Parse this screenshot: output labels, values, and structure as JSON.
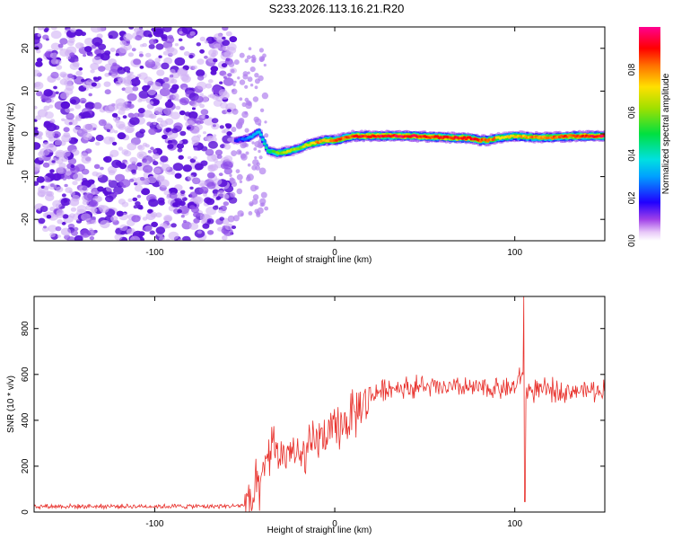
{
  "page": {
    "title": "S233.2026.113.16.21.R20"
  },
  "chart_data": [
    {
      "type": "heatmap",
      "title": "S233.2026.113.16.21.R20",
      "xlabel": "Height of straight line (km)",
      "ylabel": "Frequency (Hz)",
      "xlim": [
        -167,
        150
      ],
      "ylim": [
        -25,
        25
      ],
      "xticks": [
        -100,
        0,
        100
      ],
      "yticks": [
        -20,
        -10,
        0,
        10,
        20
      ],
      "colorbar": {
        "label": "Normalized spectral amplitude",
        "range": [
          0,
          1
        ],
        "ticks": [
          0.0,
          0.2,
          0.4,
          0.6,
          0.8
        ]
      },
      "noise_region_x": [
        -167,
        -56
      ],
      "ridge": {
        "x": [
          -55,
          -48,
          -42,
          -37,
          -32,
          -25,
          -20,
          -15,
          -10,
          -5,
          0,
          5,
          10,
          20,
          40,
          60,
          70,
          75,
          80,
          85,
          90,
          95,
          100,
          110,
          120,
          135,
          150
        ],
        "freq": [
          -1.5,
          -1.0,
          0.5,
          -4.0,
          -4.5,
          -4.0,
          -3.5,
          -2.5,
          -2.0,
          -1.5,
          -1.5,
          -1.0,
          -0.5,
          -0.5,
          -0.5,
          -0.8,
          -1.0,
          -1.0,
          -1.5,
          -1.5,
          -1.0,
          -0.8,
          -0.5,
          -0.8,
          -0.8,
          -0.5,
          -0.5
        ],
        "amplitude": [
          0.2,
          0.3,
          0.35,
          0.45,
          0.6,
          0.7,
          0.6,
          0.7,
          0.8,
          0.8,
          0.85,
          0.85,
          0.9,
          0.95,
          0.95,
          0.9,
          0.95,
          0.95,
          0.9,
          0.85,
          0.8,
          0.7,
          0.75,
          0.8,
          0.85,
          0.9,
          0.95
        ]
      }
    },
    {
      "type": "line",
      "title": "",
      "xlabel": "Height of straight line (km)",
      "ylabel": "SNR (10 * v/v)",
      "xlim": [
        -167,
        150
      ],
      "ylim": [
        0,
        940
      ],
      "xticks": [
        -100,
        0,
        100
      ],
      "yticks": [
        0,
        200,
        400,
        600,
        800
      ],
      "series": [
        {
          "name": "SNR",
          "color": "#e8312c",
          "envelope_x": [
            -167,
            -60,
            -50,
            -45,
            -40,
            -37,
            -35,
            -30,
            -25,
            -20,
            -15,
            -10,
            -5,
            0,
            5,
            10,
            15,
            20,
            25,
            30,
            40,
            50,
            60,
            80,
            100,
            104,
            105,
            106,
            110,
            130,
            150
          ],
          "envelope_y": [
            25,
            25,
            30,
            60,
            130,
            250,
            300,
            240,
            270,
            230,
            260,
            320,
            330,
            340,
            390,
            420,
            460,
            500,
            530,
            540,
            545,
            545,
            540,
            540,
            540,
            600,
            620,
            530,
            530,
            530,
            530
          ],
          "spikes": [
            {
              "x": 105.2,
              "y": 940
            },
            {
              "x": 105.6,
              "y": 45
            }
          ]
        }
      ]
    }
  ]
}
